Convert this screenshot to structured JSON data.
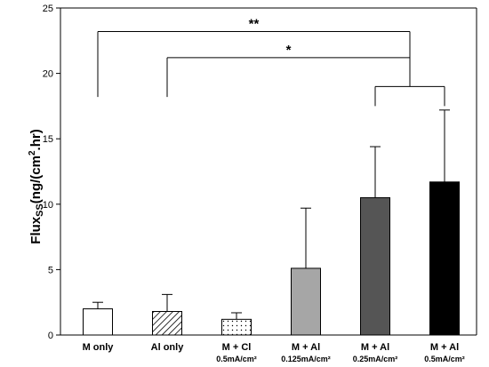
{
  "chart_data": {
    "type": "bar",
    "categories": [
      {
        "label": "M only",
        "sublabel": ""
      },
      {
        "label": "Al only",
        "sublabel": ""
      },
      {
        "label": "M + Cl",
        "sublabel": "0.5mA/cm²"
      },
      {
        "label": "M + Al",
        "sublabel": "0.125mA/cm²"
      },
      {
        "label": "M + Al",
        "sublabel": "0.25mA/cm²"
      },
      {
        "label": "M + Al",
        "sublabel": "0.5mA/cm²"
      }
    ],
    "values": [
      2.0,
      1.8,
      1.2,
      5.1,
      10.5,
      11.7
    ],
    "error_upper": [
      0.5,
      1.3,
      0.5,
      4.6,
      3.9,
      5.5
    ],
    "fills": [
      "white",
      "diagonal-hatch",
      "dots",
      "#a6a6a6",
      "#555555",
      "#000000"
    ],
    "ylim": [
      0,
      25
    ],
    "yticks": [
      0,
      5,
      10,
      15,
      20,
      25
    ],
    "ylabel": {
      "main": "Flux",
      "sub": "SS",
      "unit_open": "(ng/(cm",
      "sup": "2",
      "unit_close": ".hr)"
    },
    "xlabel": "",
    "grid": false,
    "significance": [
      {
        "label": "**",
        "y": 23.2,
        "from_x": 0,
        "to_x": 4.5,
        "from_drop_to": 18.2,
        "to_drop_to": 19.0
      },
      {
        "label": "*",
        "y": 21.2,
        "from_x": 1,
        "to_x": 4.5,
        "from_drop_to": 18.2,
        "to_drop_to": 19.0
      },
      {
        "label": "",
        "y": 19.0,
        "from_x": 4,
        "to_x": 5,
        "from_drop_to": 17.5,
        "to_drop_to": 17.5
      }
    ]
  }
}
